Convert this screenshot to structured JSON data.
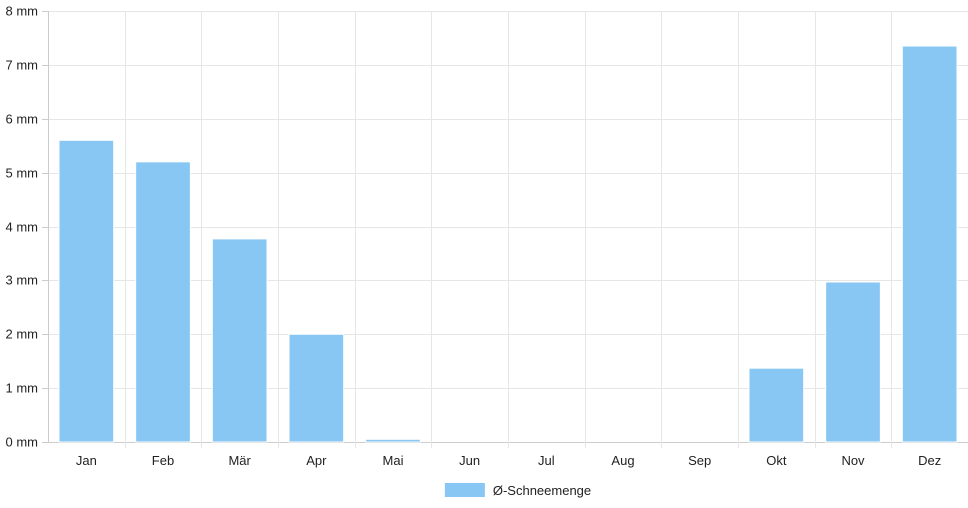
{
  "chart_data": {
    "type": "bar",
    "categories": [
      "Jan",
      "Feb",
      "Mär",
      "Apr",
      "Mai",
      "Jun",
      "Jul",
      "Aug",
      "Sep",
      "Okt",
      "Nov",
      "Dez"
    ],
    "series": [
      {
        "name": "Ø-Schneemenge",
        "values": [
          5.6,
          5.2,
          3.77,
          2.0,
          0.05,
          0,
          0,
          0,
          0,
          1.37,
          2.97,
          7.35
        ],
        "color": "#88c6f3"
      }
    ],
    "y_unit": "mm",
    "y_ticks": [
      {
        "value": 0,
        "label": "0 mm"
      },
      {
        "value": 1,
        "label": "1 mm"
      },
      {
        "value": 2,
        "label": "2 mm"
      },
      {
        "value": 3,
        "label": "3 mm"
      },
      {
        "value": 4,
        "label": "4 mm"
      },
      {
        "value": 5,
        "label": "5 mm"
      },
      {
        "value": 6,
        "label": "6 mm"
      },
      {
        "value": 7,
        "label": "7 mm"
      },
      {
        "value": 8,
        "label": "8 mm"
      }
    ],
    "ylim": [
      0,
      8
    ],
    "grid": true,
    "legend": "bottom-center",
    "title": "",
    "xlabel": "",
    "ylabel": ""
  }
}
